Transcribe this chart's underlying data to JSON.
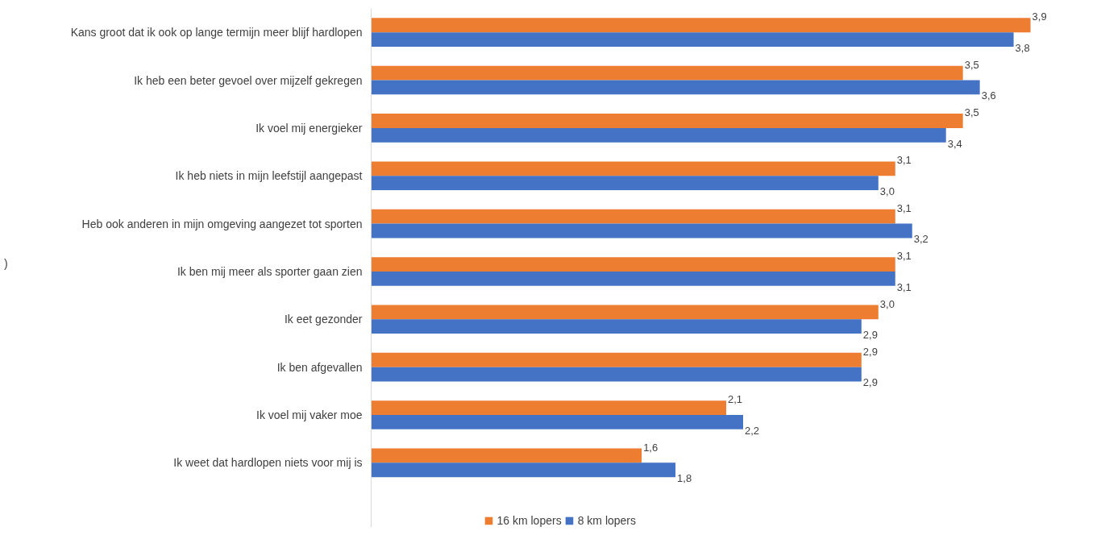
{
  "chart_data": {
    "type": "bar",
    "orientation": "horizontal",
    "grid": false,
    "legend": "bottom",
    "categories": [
      "Kans groot dat ik ook op lange termijn meer blijf hardlopen",
      "Ik heb een beter gevoel over mijzelf gekregen",
      "Ik voel mij energieker",
      "Ik heb niets in mijn leefstijl aangepast",
      "Heb ook anderen in mijn omgeving aangezet tot sporten",
      "Ik ben mij meer als sporter gaan zien",
      "Ik eet gezonder",
      "Ik ben afgevallen",
      "Ik voel mij vaker moe",
      "Ik weet dat hardlopen niets voor mij is"
    ],
    "series": [
      {
        "name": "16 km lopers",
        "color": "#ed7d31",
        "values": [
          3.9,
          3.5,
          3.5,
          3.1,
          3.1,
          3.1,
          3.0,
          2.9,
          2.1,
          1.6
        ],
        "value_labels": [
          "3,9",
          "3,5",
          "3,5",
          "3,1",
          "3,1",
          "3,1",
          "3,0",
          "2,9",
          "2,1",
          "1,6"
        ]
      },
      {
        "name": "8 km lopers",
        "color": "#4472c4",
        "values": [
          3.8,
          3.6,
          3.4,
          3.0,
          3.2,
          3.1,
          2.9,
          2.9,
          2.2,
          1.8
        ],
        "value_labels": [
          "3,8",
          "3,6",
          "3,4",
          "3,0",
          "3,2",
          "3,1",
          "2,9",
          "2,9",
          "2,2",
          "1,8"
        ]
      }
    ],
    "annotations": [
      ")"
    ]
  }
}
